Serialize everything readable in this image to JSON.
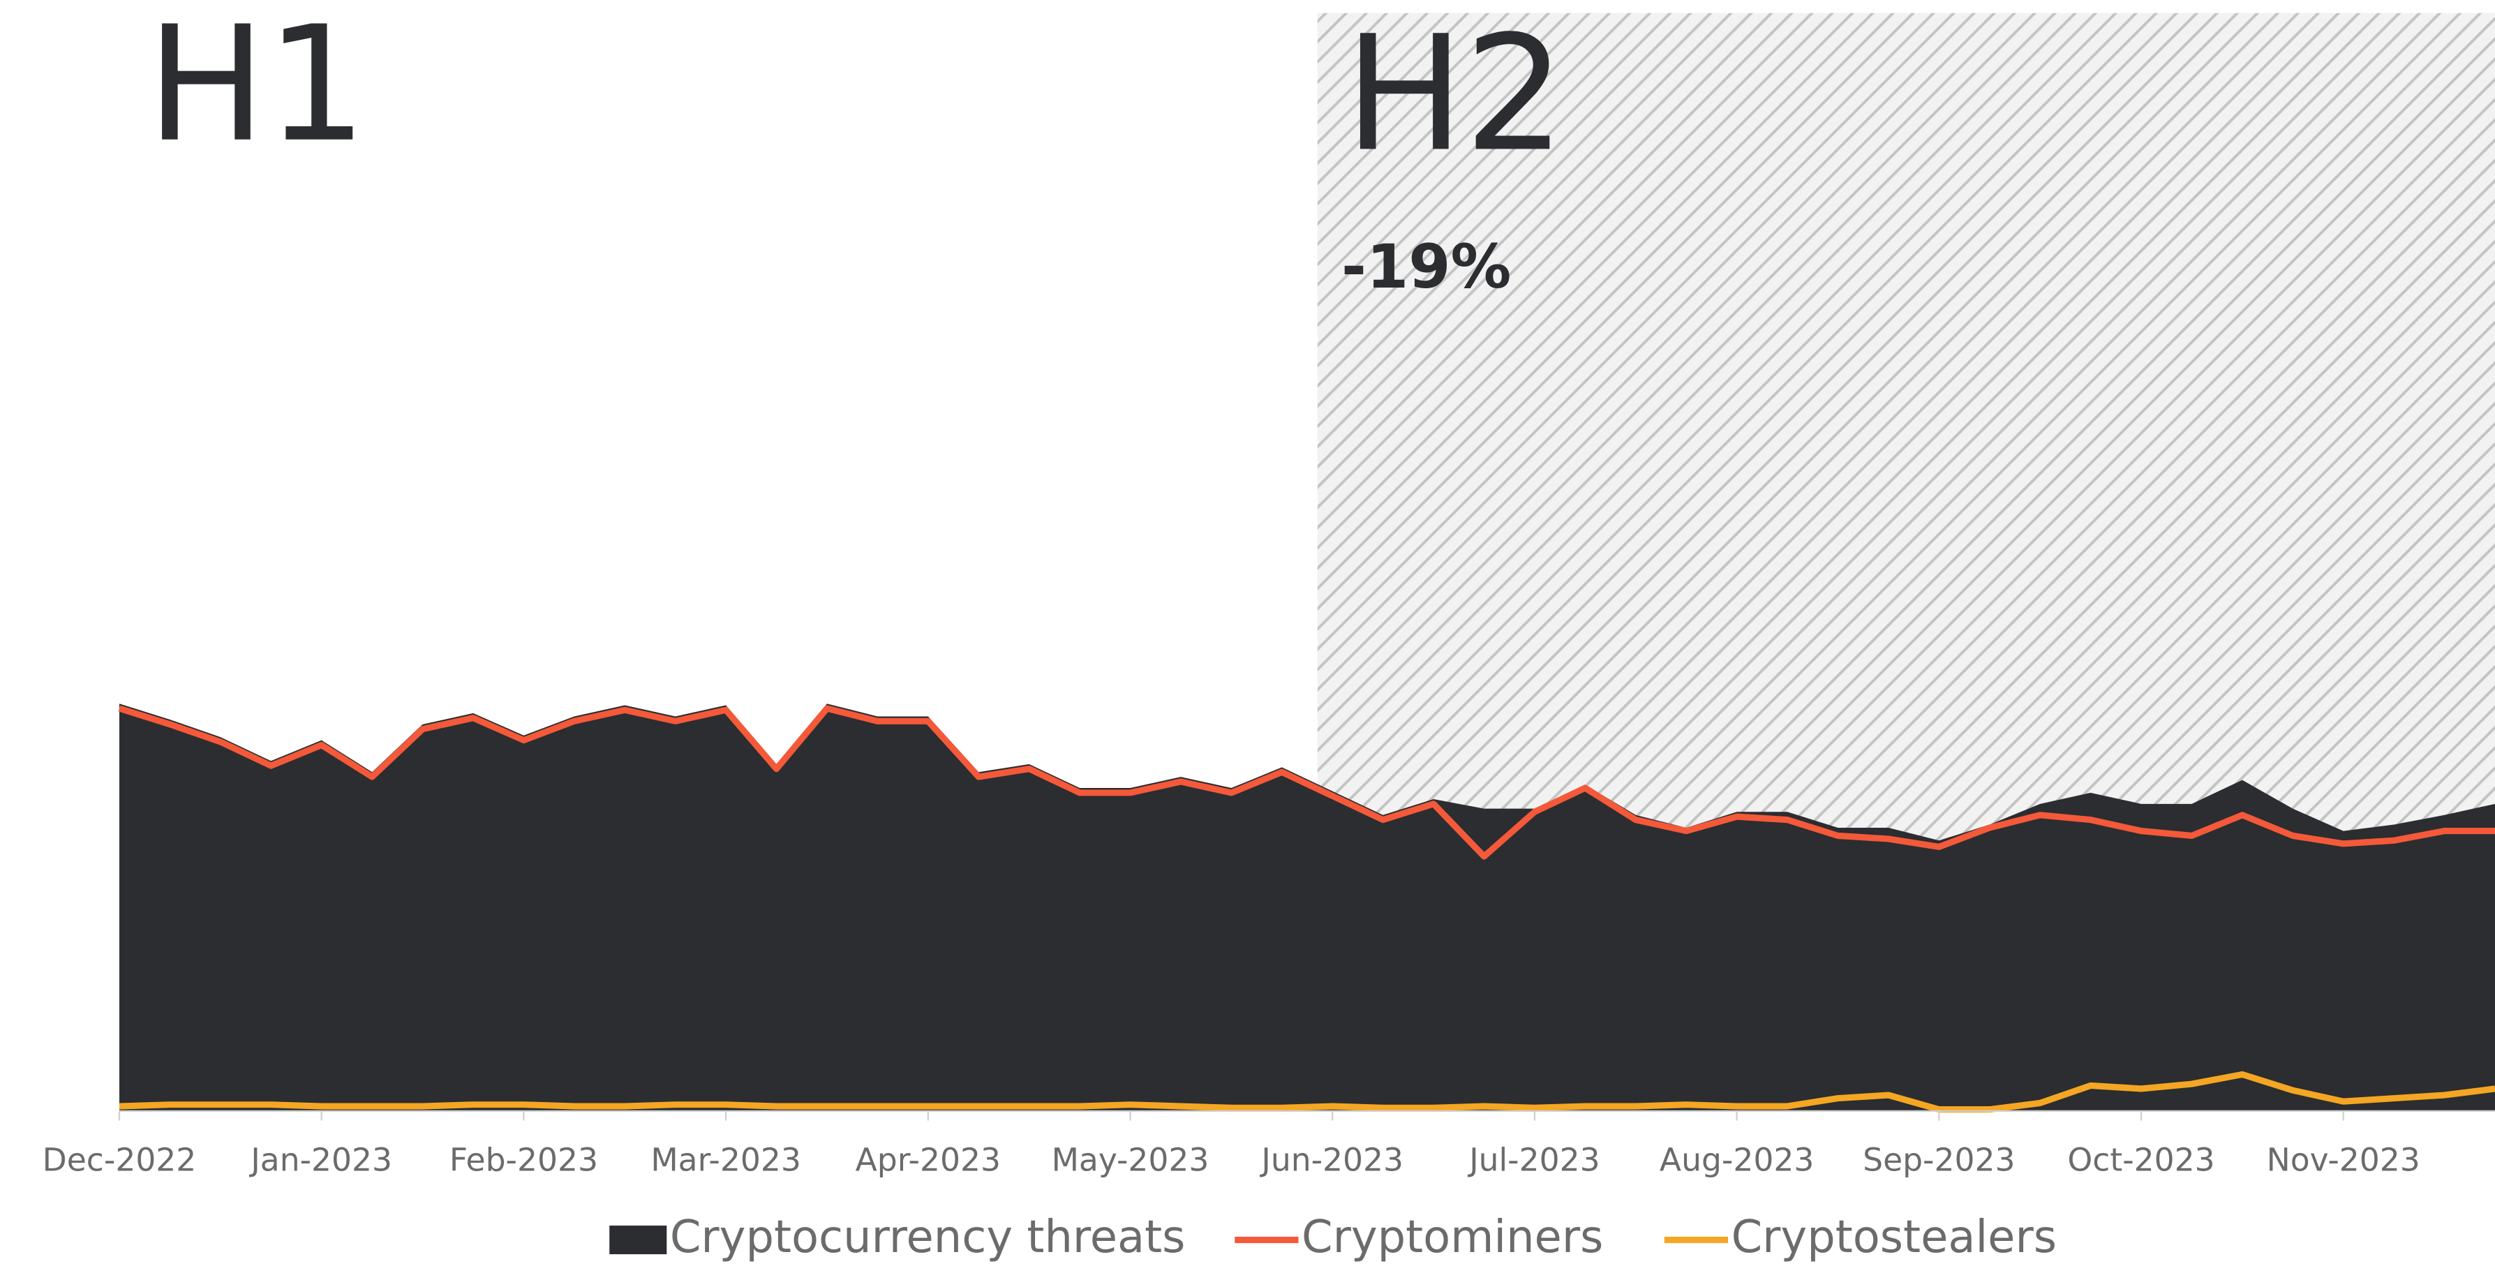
{
  "chart_data": {
    "type": "area",
    "annotations": {
      "h1": "H1",
      "h2": "H2",
      "h2_change": "-19%"
    },
    "x_labels": [
      "Dec-2022",
      "Jan-2023",
      "Feb-2023",
      "Mar-2023",
      "Apr-2023",
      "May-2023",
      "Jun-2023",
      "Jul-2023",
      "Aug-2023",
      "Sep-2023",
      "Oct-2023",
      "Nov-2023"
    ],
    "series": [
      {
        "name": "Cryptocurrency threats",
        "color": "#2b2d30",
        "values": [
          256,
          246,
          235,
          220,
          233,
          213,
          243,
          250,
          236,
          248,
          255,
          248,
          255,
          218,
          256,
          248,
          248,
          213,
          218,
          203,
          203,
          210,
          203,
          216,
          201,
          186,
          196,
          190,
          190,
          205,
          186,
          178,
          188,
          188,
          178,
          178,
          170,
          180,
          193,
          200,
          193,
          193,
          208,
          190,
          176,
          180,
          186,
          193
        ]
      },
      {
        "name": "Cryptominers",
        "color": "#f4593a",
        "values": [
          253,
          243,
          232,
          217,
          230,
          210,
          240,
          247,
          233,
          245,
          252,
          245,
          252,
          215,
          253,
          245,
          245,
          210,
          215,
          200,
          200,
          207,
          200,
          213,
          198,
          183,
          193,
          160,
          188,
          203,
          183,
          176,
          185,
          183,
          173,
          171,
          166,
          178,
          186,
          183,
          176,
          173,
          186,
          173,
          168,
          170,
          176,
          176
        ]
      },
      {
        "name": "Cryptostealers",
        "color": "#f5a623",
        "values": [
          3,
          4,
          4,
          4,
          3,
          3,
          3,
          4,
          4,
          3,
          3,
          4,
          4,
          3,
          3,
          3,
          3,
          3,
          3,
          3,
          4,
          3,
          2,
          2,
          3,
          2,
          2,
          3,
          2,
          3,
          3,
          4,
          3,
          3,
          8,
          10,
          1,
          1,
          5,
          16,
          14,
          17,
          23,
          13,
          6,
          8,
          10,
          14
        ]
      }
    ]
  }
}
